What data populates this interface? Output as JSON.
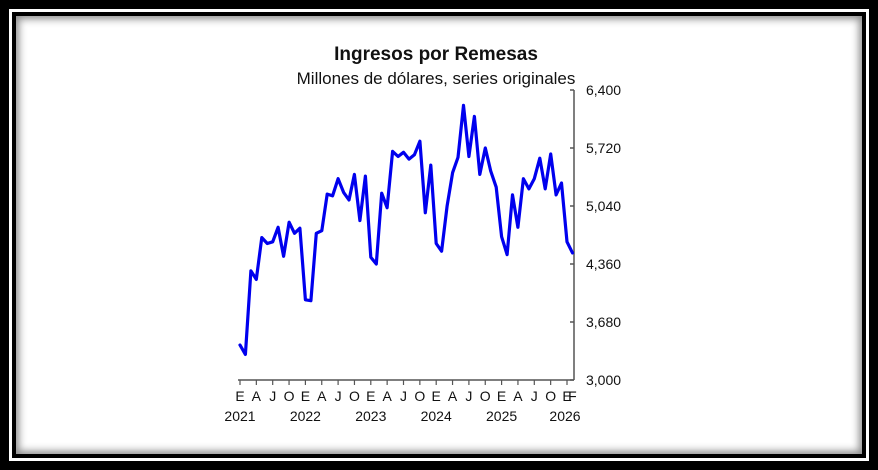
{
  "chart_data": {
    "type": "line",
    "title": "Ingresos por Remesas",
    "subtitle": "Millones de dólares, series originales",
    "xlabel": "",
    "ylabel": "",
    "ylim": [
      3000,
      6400
    ],
    "yticks": [
      "6,400",
      "5,720",
      "5,040",
      "4,360",
      "3,680",
      "3,000"
    ],
    "ytick_values": [
      6400,
      5720,
      5040,
      4360,
      3680,
      3000
    ],
    "y_axis_position": "right",
    "grid": false,
    "legend": "none",
    "line_color": "#0000ee",
    "x_month_labels": [
      "E",
      "A",
      "J",
      "O",
      "E",
      "A",
      "J",
      "O",
      "E",
      "A",
      "J",
      "O",
      "E",
      "A",
      "J",
      "O",
      "E",
      "A",
      "J",
      "O",
      "E",
      "F"
    ],
    "x_year_labels": [
      "2021",
      "2022",
      "2023",
      "2024",
      "2025",
      "2026"
    ],
    "series": [
      {
        "name": "Ingresos por Remesas",
        "start": "2021-01",
        "end": "2026-02",
        "values": [
          3410,
          3300,
          4280,
          4180,
          4670,
          4600,
          4620,
          4790,
          4450,
          4850,
          4720,
          4780,
          3940,
          3930,
          4720,
          4750,
          5180,
          5160,
          5360,
          5200,
          5110,
          5410,
          4870,
          5390,
          4440,
          4360,
          5190,
          5020,
          5680,
          5620,
          5670,
          5590,
          5640,
          5800,
          4960,
          5520,
          4600,
          4510,
          5040,
          5430,
          5610,
          6220,
          5620,
          6090,
          5410,
          5720,
          5450,
          5260,
          4680,
          4470,
          5170,
          4790,
          5360,
          5240,
          5360,
          5600,
          5240,
          5650,
          5170,
          5310,
          4620,
          4490
        ]
      }
    ]
  }
}
